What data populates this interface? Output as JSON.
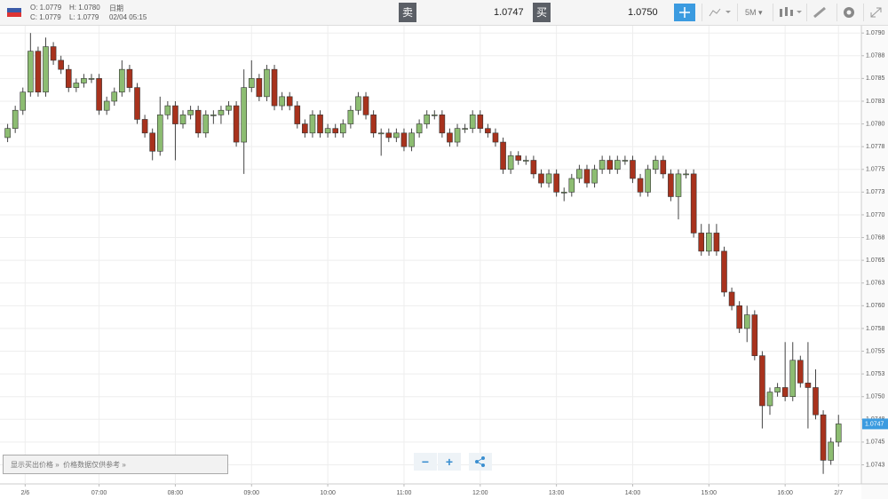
{
  "header": {
    "open": "O: 1.0779",
    "high": "H: 1.0780",
    "date_label": "日期",
    "close": "C: 1.0779",
    "low": "L: 1.0779",
    "datetime": "02/04 05:15",
    "sell_label": "卖",
    "sell_price": "1.0747",
    "buy_label": "买",
    "buy_price": "1.0750",
    "interval": "5M"
  },
  "footer": {
    "show_sell": "显示买出价格 »",
    "disclaimer": "价格数据仅供参考 »"
  },
  "chart_data": {
    "type": "candlestick",
    "up_color": "#8dbd72",
    "down_color": "#a8321d",
    "grid": true,
    "xlim": [
      -1,
      112
    ],
    "ylim": [
      1.07404,
      1.07908
    ],
    "xticks": [
      {
        "value": 2.3,
        "label": "2/6"
      },
      {
        "value": 12,
        "label": "07:00"
      },
      {
        "value": 22,
        "label": "08:00"
      },
      {
        "value": 32,
        "label": "09:00"
      },
      {
        "value": 42,
        "label": "10:00"
      },
      {
        "value": 52,
        "label": "11:00"
      },
      {
        "value": 62,
        "label": "12:00"
      },
      {
        "value": 72,
        "label": "13:00"
      },
      {
        "value": 82,
        "label": "14:00"
      },
      {
        "value": 92,
        "label": "15:00"
      },
      {
        "value": 102,
        "label": "16:00"
      },
      {
        "value": 109,
        "label": "2/7"
      }
    ],
    "yticks": [
      {
        "value": 1.079,
        "label": "1.0790"
      },
      {
        "value": 1.07875,
        "label": "1.0788"
      },
      1.0785,
      {
        "value": 1.07825,
        "label": "1.0783"
      },
      {
        "value": 1.078,
        "label": "1.0780"
      },
      {
        "value": 1.07775,
        "label": "1.0778"
      },
      1.0775,
      {
        "value": 1.07725,
        "label": "1.0773"
      },
      {
        "value": 1.077,
        "label": "1.0770"
      },
      {
        "value": 1.07675,
        "label": "1.0768"
      },
      1.0765,
      {
        "value": 1.07625,
        "label": "1.0763"
      },
      {
        "value": 1.076,
        "label": "1.0760"
      },
      {
        "value": 1.07575,
        "label": "1.0758"
      },
      1.0755,
      {
        "value": 1.07525,
        "label": "1.0753"
      },
      {
        "value": 1.075,
        "label": "1.0750"
      },
      {
        "value": 1.07475,
        "label": "1.0748"
      },
      1.0745,
      {
        "value": 1.07425,
        "label": "1.0743"
      }
    ],
    "last_price": 1.0747,
    "open": [
      1.07785,
      1.07795,
      1.07815,
      1.07835,
      1.0788,
      1.07835,
      1.07885,
      1.0787,
      1.0786,
      1.0784,
      1.07845,
      1.0785,
      1.0785,
      1.07815,
      1.07825,
      1.07835,
      1.0786,
      1.0784,
      1.07805,
      1.0779,
      1.0777,
      1.0781,
      1.0782,
      1.078,
      1.0781,
      1.07815,
      1.0779,
      1.0781,
      1.0781,
      1.07815,
      1.0782,
      1.0778,
      1.0784,
      1.0785,
      1.0783,
      1.0786,
      1.0782,
      1.0783,
      1.0782,
      1.078,
      1.0779,
      1.0781,
      1.0779,
      1.07795,
      1.0779,
      1.078,
      1.07815,
      1.0783,
      1.0781,
      1.0779,
      1.0779,
      1.07785,
      1.0779,
      1.07775,
      1.0779,
      1.078,
      1.0781,
      1.0781,
      1.0779,
      1.0778,
      1.07795,
      1.07795,
      1.0781,
      1.07795,
      1.0779,
      1.0778,
      1.0775,
      1.07765,
      1.0776,
      1.0776,
      1.07745,
      1.07735,
      1.07745,
      1.07725,
      1.07725,
      1.0774,
      1.0775,
      1.07735,
      1.0775,
      1.0776,
      1.0775,
      1.0776,
      1.0776,
      1.0774,
      1.07725,
      1.0775,
      1.0776,
      1.07745,
      1.0772,
      1.07745,
      1.07745,
      1.0768,
      1.0766,
      1.0768,
      1.0766,
      1.07615,
      1.076,
      1.07575,
      1.0759,
      1.07545,
      1.0749,
      1.07505,
      1.0751,
      1.075,
      1.0754,
      1.07515,
      1.0751,
      1.0748,
      1.0743,
      1.0745
    ],
    "high": [
      1.078,
      1.0782,
      1.0784,
      1.079,
      1.07885,
      1.07895,
      1.0789,
      1.07875,
      1.07865,
      1.0785,
      1.07855,
      1.07855,
      1.07855,
      1.0783,
      1.0784,
      1.0787,
      1.07865,
      1.07845,
      1.0781,
      1.07795,
      1.0783,
      1.07825,
      1.07825,
      1.07815,
      1.0782,
      1.0782,
      1.07815,
      1.07815,
      1.0782,
      1.07825,
      1.07825,
      1.0786,
      1.0787,
      1.07855,
      1.07865,
      1.07865,
      1.07835,
      1.07835,
      1.07825,
      1.07805,
      1.07815,
      1.07815,
      1.078,
      1.078,
      1.07805,
      1.0782,
      1.07835,
      1.07835,
      1.07815,
      1.07795,
      1.07795,
      1.07795,
      1.07795,
      1.07795,
      1.07805,
      1.07815,
      1.07815,
      1.07815,
      1.07795,
      1.078,
      1.078,
      1.07815,
      1.07815,
      1.078,
      1.07795,
      1.07785,
      1.0777,
      1.0777,
      1.07765,
      1.07765,
      1.0775,
      1.0775,
      1.0775,
      1.0773,
      1.07745,
      1.07755,
      1.07755,
      1.07755,
      1.07765,
      1.07765,
      1.07765,
      1.07765,
      1.07765,
      1.07745,
      1.07755,
      1.07765,
      1.07765,
      1.0775,
      1.0775,
      1.0775,
      1.0775,
      1.0769,
      1.0769,
      1.0769,
      1.07665,
      1.0762,
      1.07605,
      1.076,
      1.07595,
      1.0755,
      1.0751,
      1.07515,
      1.0756,
      1.0756,
      1.07545,
      1.0756,
      1.0753,
      1.07485,
      1.07455,
      1.0748
    ],
    "low": [
      1.0778,
      1.0779,
      1.0781,
      1.0783,
      1.0783,
      1.0783,
      1.07865,
      1.07855,
      1.07835,
      1.07835,
      1.0784,
      1.07845,
      1.0781,
      1.0781,
      1.0782,
      1.0783,
      1.07835,
      1.078,
      1.07785,
      1.0776,
      1.07765,
      1.07805,
      1.0776,
      1.07795,
      1.07805,
      1.07785,
      1.07785,
      1.078,
      1.078,
      1.0781,
      1.07775,
      1.07745,
      1.07835,
      1.07825,
      1.07825,
      1.07815,
      1.07815,
      1.07815,
      1.07795,
      1.07785,
      1.07785,
      1.07785,
      1.07785,
      1.07785,
      1.07785,
      1.07795,
      1.0781,
      1.07805,
      1.07785,
      1.07765,
      1.0778,
      1.0778,
      1.0777,
      1.0777,
      1.07785,
      1.07795,
      1.07805,
      1.07785,
      1.07775,
      1.07775,
      1.0779,
      1.0779,
      1.0779,
      1.07785,
      1.07775,
      1.07745,
      1.07745,
      1.07755,
      1.07755,
      1.0774,
      1.0773,
      1.0773,
      1.0772,
      1.07715,
      1.0772,
      1.07735,
      1.0773,
      1.0773,
      1.07745,
      1.07745,
      1.07745,
      1.07755,
      1.07735,
      1.0772,
      1.0772,
      1.07745,
      1.0774,
      1.07715,
      1.07695,
      1.0774,
      1.07675,
      1.07655,
      1.07655,
      1.07655,
      1.0761,
      1.07595,
      1.0757,
      1.0756,
      1.0754,
      1.07465,
      1.0748,
      1.075,
      1.07495,
      1.07495,
      1.0751,
      1.07465,
      1.07475,
      1.07415,
      1.07425,
      1.07445
    ],
    "close": [
      1.07795,
      1.07815,
      1.07835,
      1.0788,
      1.07835,
      1.07885,
      1.0787,
      1.0786,
      1.0784,
      1.07845,
      1.0785,
      1.0785,
      1.07815,
      1.07825,
      1.07835,
      1.0786,
      1.0784,
      1.07805,
      1.0779,
      1.0777,
      1.0781,
      1.0782,
      1.078,
      1.0781,
      1.07815,
      1.0779,
      1.0781,
      1.0781,
      1.07815,
      1.0782,
      1.0778,
      1.0784,
      1.0785,
      1.0783,
      1.0786,
      1.0782,
      1.0783,
      1.0782,
      1.078,
      1.0779,
      1.0781,
      1.0779,
      1.07795,
      1.0779,
      1.078,
      1.07815,
      1.0783,
      1.0781,
      1.0779,
      1.0779,
      1.07785,
      1.0779,
      1.07775,
      1.0779,
      1.078,
      1.0781,
      1.0781,
      1.0779,
      1.0778,
      1.07795,
      1.07795,
      1.0781,
      1.07795,
      1.0779,
      1.0778,
      1.0775,
      1.07765,
      1.0776,
      1.0776,
      1.07745,
      1.07735,
      1.07745,
      1.07725,
      1.07725,
      1.0774,
      1.0775,
      1.07735,
      1.0775,
      1.0776,
      1.0775,
      1.0776,
      1.0776,
      1.0774,
      1.07725,
      1.0775,
      1.0776,
      1.07745,
      1.0772,
      1.07745,
      1.07745,
      1.0768,
      1.0766,
      1.0768,
      1.0766,
      1.07615,
      1.076,
      1.07575,
      1.0759,
      1.07545,
      1.0749,
      1.07505,
      1.0751,
      1.075,
      1.0754,
      1.07515,
      1.0751,
      1.0748,
      1.0743,
      1.0745,
      1.0747
    ]
  }
}
